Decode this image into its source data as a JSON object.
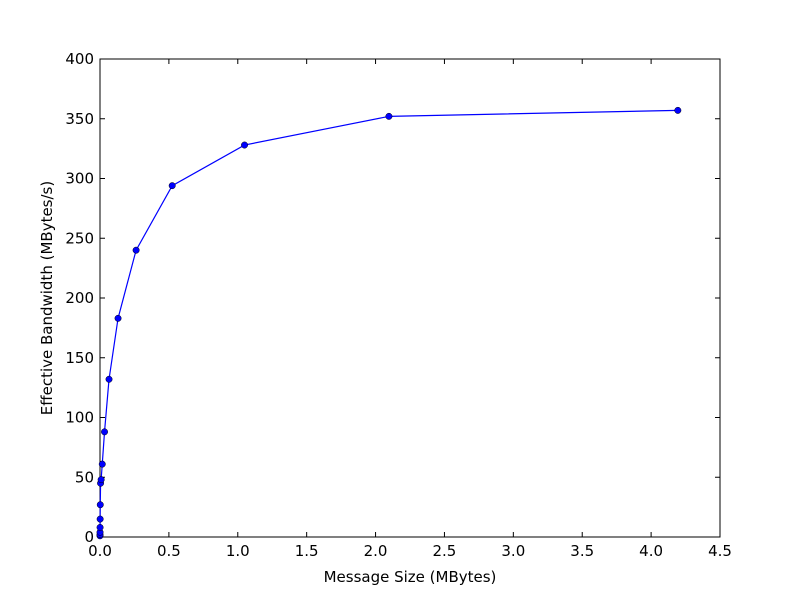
{
  "chart_data": {
    "type": "line",
    "x_label": "Message Size (MBytes)",
    "y_label": "Effective Bandwidth (MBytes/s)",
    "x": [
      6.5e-05,
      0.00013,
      0.00026,
      0.0005,
      0.001,
      0.002,
      0.0041,
      0.0082,
      0.0164,
      0.0328,
      0.0655,
      0.131,
      0.262,
      0.524,
      1.049,
      2.097,
      4.194
    ],
    "series": [
      {
        "color": "#0000ff",
        "values": [
          1,
          2,
          4,
          8,
          15,
          27,
          45,
          48,
          61,
          88,
          132,
          183,
          240,
          294,
          328,
          352,
          357
        ]
      }
    ],
    "xlim": [
      0,
      4.5
    ],
    "xticks": [
      {
        "value": 0,
        "label": "0.0"
      },
      0.5,
      {
        "value": 1,
        "label": "1.0"
      },
      1.5,
      {
        "value": 2,
        "label": "2.0"
      },
      2.5,
      {
        "value": 3,
        "label": "3.0"
      },
      3.5,
      {
        "value": 4,
        "label": "4.0"
      },
      4.5
    ],
    "ylim": [
      0,
      400
    ],
    "yticks": [
      0,
      50,
      100,
      150,
      200,
      250,
      300,
      350,
      400
    ],
    "grid": false,
    "markers": true
  }
}
